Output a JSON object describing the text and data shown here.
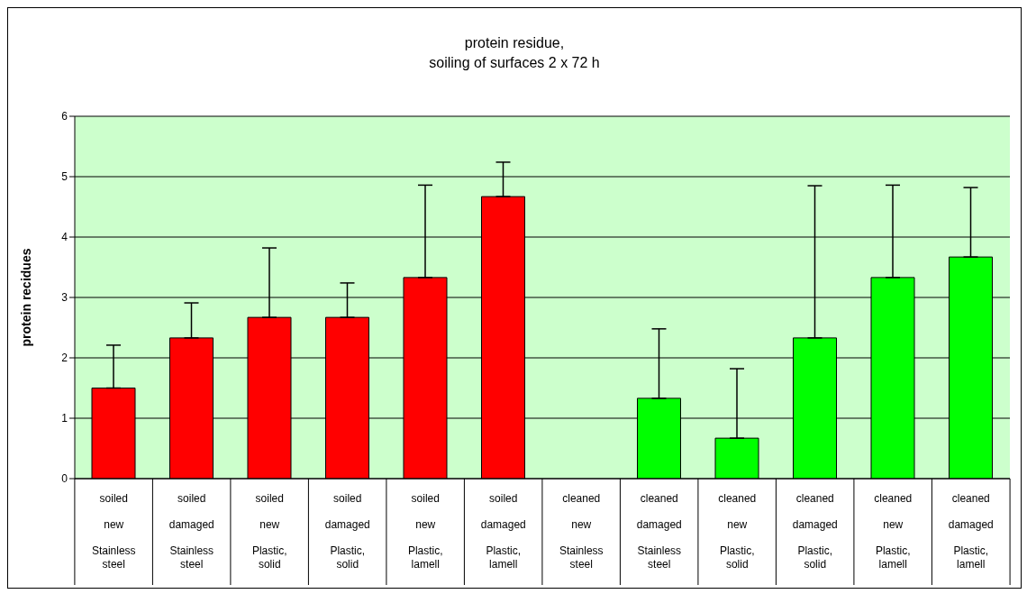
{
  "chart_data": {
    "type": "bar",
    "title": "protein residue,\nsoiling of surfaces 2 x 72 h",
    "ylabel": "protein recidues",
    "categories": [
      "soiled\nnew\nStainless steel",
      "soiled\ndamaged\nStainless steel",
      "soiled\nnew\nPlastic, solid",
      "soiled\ndamaged\nPlastic, solid",
      "soiled\nnew\nPlastic, lamell",
      "soiled\ndamaged\nPlastic, lamell",
      "cleaned\nnew\nStainless steel",
      "cleaned\ndamaged\nStainless steel",
      "cleaned\nnew\nPlastic, solid",
      "cleaned\ndamaged\nPlastic, solid",
      "cleaned\nnew\nPlastic, lamell",
      "cleaned\ndamaged\nPlastic, lamell"
    ],
    "values": [
      1.5,
      2.33,
      2.67,
      2.67,
      3.33,
      4.67,
      0,
      1.33,
      0.67,
      2.33,
      3.33,
      3.67
    ],
    "errors": [
      [
        1.5,
        2.21
      ],
      [
        2.33,
        2.91
      ],
      [
        2.67,
        3.82
      ],
      [
        2.67,
        3.24
      ],
      [
        3.33,
        4.86
      ],
      [
        4.67,
        5.24
      ],
      null,
      [
        1.33,
        2.48
      ],
      [
        0.67,
        1.82
      ],
      [
        2.33,
        4.85
      ],
      [
        3.33,
        4.86
      ],
      [
        3.67,
        4.82
      ]
    ],
    "colors": [
      "#ff0000",
      "#ff0000",
      "#ff0000",
      "#ff0000",
      "#ff0000",
      "#ff0000",
      "#00ff00",
      "#00ff00",
      "#00ff00",
      "#00ff00",
      "#00ff00",
      "#00ff00"
    ],
    "ylim": [
      0,
      6
    ],
    "yticks": [
      0,
      1,
      2,
      3,
      4,
      5,
      6
    ],
    "grid": "y"
  }
}
